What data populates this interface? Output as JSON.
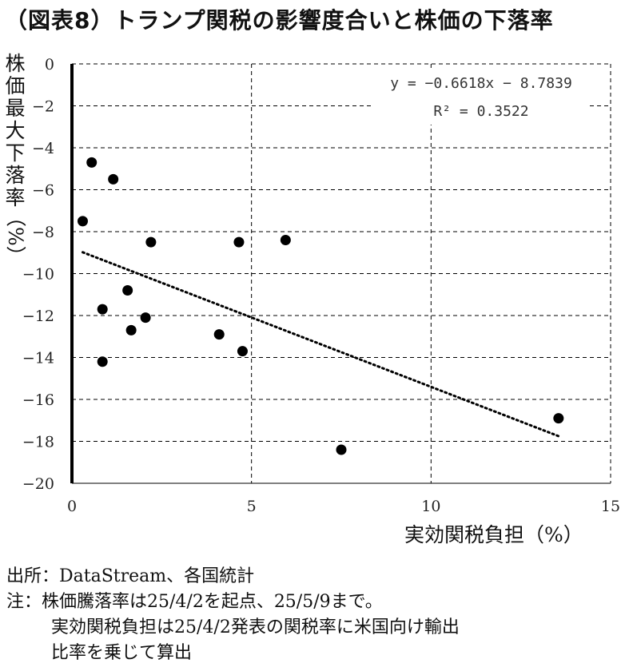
{
  "title": "（図表8）トランプ関税の影響度合いと株価の下落率",
  "chart_data": {
    "type": "scatter",
    "xlabel": "実効関税負担（%）",
    "ylabel_chars": [
      "株",
      "価",
      "最",
      "大",
      "下",
      "落",
      "率"
    ],
    "ylabel_paren": "（%）",
    "xlim": [
      0,
      15
    ],
    "ylim": [
      -20,
      0
    ],
    "x_ticks": [
      0,
      5,
      10,
      15
    ],
    "y_ticks": [
      0,
      -2,
      -4,
      -6,
      -8,
      -10,
      -12,
      -14,
      -16,
      -18,
      -20
    ],
    "tick_labels_x": [
      "0",
      "5",
      "10",
      "15"
    ],
    "tick_labels_y": [
      "0",
      "−2",
      "−4",
      "−6",
      "−8",
      "−10",
      "−12",
      "−14",
      "−16",
      "−18",
      "−20"
    ],
    "grid": true,
    "points": [
      {
        "x": 0.3,
        "y": -7.5
      },
      {
        "x": 0.55,
        "y": -4.7
      },
      {
        "x": 0.85,
        "y": -11.7
      },
      {
        "x": 0.85,
        "y": -14.2
      },
      {
        "x": 1.15,
        "y": -5.5
      },
      {
        "x": 1.55,
        "y": -10.8
      },
      {
        "x": 1.65,
        "y": -12.7
      },
      {
        "x": 2.05,
        "y": -12.1
      },
      {
        "x": 2.2,
        "y": -8.5
      },
      {
        "x": 4.1,
        "y": -12.9
      },
      {
        "x": 4.65,
        "y": -8.5
      },
      {
        "x": 4.75,
        "y": -13.7
      },
      {
        "x": 5.95,
        "y": -8.4
      },
      {
        "x": 7.5,
        "y": -18.4
      },
      {
        "x": 13.55,
        "y": -16.9
      }
    ],
    "trendline": {
      "slope": -0.6618,
      "intercept": -8.7839,
      "x_range": [
        0.3,
        13.55
      ],
      "equation": "y = −0.6618x − 8.7839",
      "r2": "R² = 0.3522"
    }
  },
  "notes": [
    "出所：DataStream、各国統計",
    "注：株価騰落率は25/4/2を起点、25/5/9まで。",
    "実効関税負担は25/4/2発表の関税率に米国向け輸出",
    "比率を乗じて算出"
  ]
}
